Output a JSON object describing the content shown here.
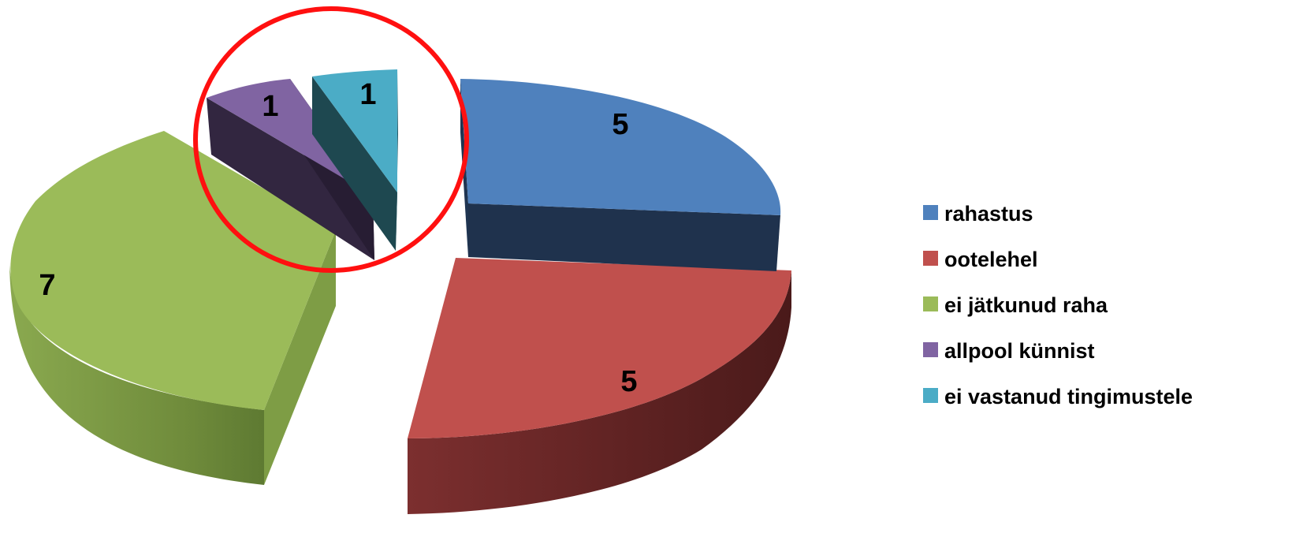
{
  "chart_data": {
    "type": "pie",
    "three_d": true,
    "exploded": true,
    "legend_position": "right",
    "slices": [
      {
        "label": "rahastus",
        "value": 5,
        "data_label": "5",
        "color": "#4f81bd"
      },
      {
        "label": "ootelehel",
        "value": 5,
        "data_label": "5",
        "color": "#c0504d"
      },
      {
        "label": "ei jätkunud raha",
        "value": 7,
        "data_label": "7",
        "color": "#9bbb59"
      },
      {
        "label": "allpool künnist",
        "value": 1,
        "data_label": "1",
        "color": "#8064a2"
      },
      {
        "label": "ei vastanud tingimustele",
        "value": 1,
        "data_label": "1",
        "color": "#4bacc6"
      }
    ],
    "annotation": {
      "shape": "circle",
      "color": "#ff0000",
      "highlights": [
        "allpool künnist",
        "ei vastanud tingimustele"
      ]
    }
  }
}
